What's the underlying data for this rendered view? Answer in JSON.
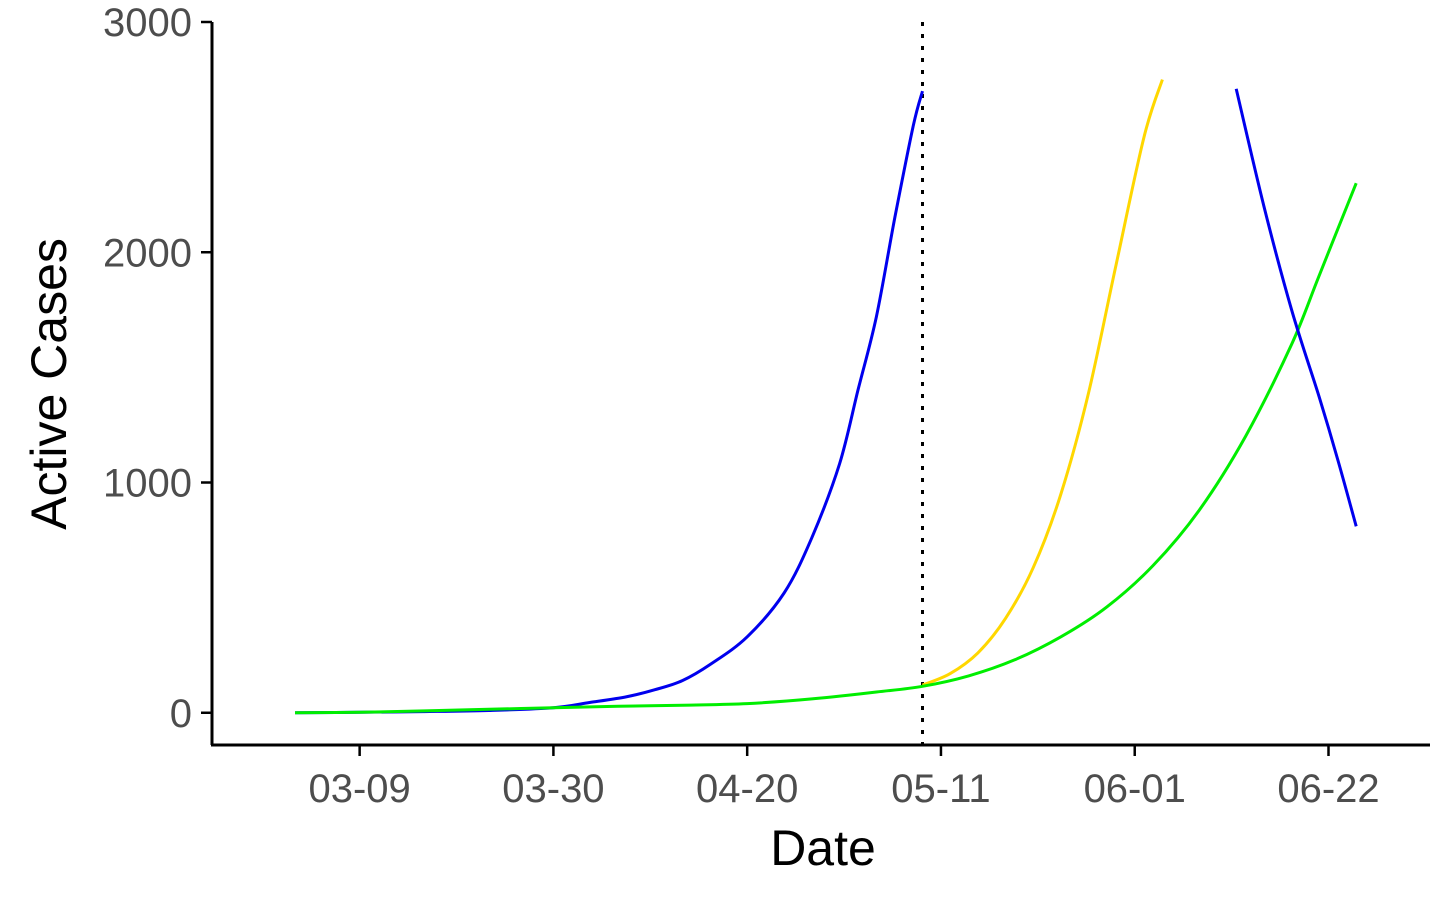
{
  "chart_data": {
    "type": "line",
    "title": "",
    "xlabel": "Date",
    "ylabel": "Active Cases",
    "x_axis": {
      "type": "date",
      "range": [
        "2020-02-22",
        "2020-07-03"
      ],
      "ticks": [
        {
          "date": "2020-03-09",
          "label": "03-09"
        },
        {
          "date": "2020-03-30",
          "label": "03-30"
        },
        {
          "date": "2020-04-20",
          "label": "04-20"
        },
        {
          "date": "2020-05-11",
          "label": "05-11"
        },
        {
          "date": "2020-06-01",
          "label": "06-01"
        },
        {
          "date": "2020-06-22",
          "label": "06-22"
        }
      ]
    },
    "y_axis": {
      "range": [
        -140,
        3000
      ],
      "ticks": [
        {
          "value": 0,
          "label": "0"
        },
        {
          "value": 1000,
          "label": "1000"
        },
        {
          "value": 2000,
          "label": "2000"
        },
        {
          "value": 3000,
          "label": "3000"
        }
      ]
    },
    "grid": false,
    "legend": "none",
    "reference_lines": [
      {
        "orientation": "vertical",
        "x": "2020-05-09",
        "style": "dotted",
        "color": "#000000"
      }
    ],
    "series": [
      {
        "color": "#0000ee",
        "points": [
          [
            "2020-03-02",
            0
          ],
          [
            "2020-03-09",
            2
          ],
          [
            "2020-03-16",
            5
          ],
          [
            "2020-03-23",
            10
          ],
          [
            "2020-03-30",
            22
          ],
          [
            "2020-04-03",
            45
          ],
          [
            "2020-04-07",
            70
          ],
          [
            "2020-04-10",
            100
          ],
          [
            "2020-04-13",
            140
          ],
          [
            "2020-04-16",
            210
          ],
          [
            "2020-04-20",
            330
          ],
          [
            "2020-04-24",
            520
          ],
          [
            "2020-04-27",
            760
          ],
          [
            "2020-04-30",
            1080
          ],
          [
            "2020-05-02",
            1400
          ],
          [
            "2020-05-04",
            1720
          ],
          [
            "2020-05-06",
            2150
          ],
          [
            "2020-05-08",
            2550
          ],
          [
            "2020-05-09",
            2700
          ]
        ]
      },
      {
        "color": "#ffd700",
        "points": [
          [
            "2020-05-09",
            120
          ],
          [
            "2020-05-12",
            170
          ],
          [
            "2020-05-15",
            260
          ],
          [
            "2020-05-18",
            410
          ],
          [
            "2020-05-21",
            630
          ],
          [
            "2020-05-24",
            950
          ],
          [
            "2020-05-27",
            1390
          ],
          [
            "2020-05-30",
            1950
          ],
          [
            "2020-06-02",
            2500
          ],
          [
            "2020-06-04",
            2750
          ]
        ]
      },
      {
        "color": "#00ee00",
        "points": [
          [
            "2020-03-02",
            0
          ],
          [
            "2020-03-09",
            2
          ],
          [
            "2020-03-16",
            8
          ],
          [
            "2020-03-23",
            15
          ],
          [
            "2020-03-30",
            22
          ],
          [
            "2020-04-06",
            28
          ],
          [
            "2020-04-13",
            33
          ],
          [
            "2020-04-20",
            40
          ],
          [
            "2020-04-27",
            60
          ],
          [
            "2020-05-04",
            90
          ],
          [
            "2020-05-09",
            115
          ],
          [
            "2020-05-14",
            160
          ],
          [
            "2020-05-19",
            230
          ],
          [
            "2020-05-24",
            330
          ],
          [
            "2020-05-29",
            460
          ],
          [
            "2020-06-03",
            640
          ],
          [
            "2020-06-08",
            880
          ],
          [
            "2020-06-13",
            1200
          ],
          [
            "2020-06-18",
            1600
          ],
          [
            "2020-06-21",
            1900
          ],
          [
            "2020-06-25",
            2300
          ]
        ]
      },
      {
        "color": "#0000ee",
        "points": [
          [
            "2020-06-12",
            2710
          ],
          [
            "2020-06-15",
            2200
          ],
          [
            "2020-06-18",
            1750
          ],
          [
            "2020-06-21",
            1370
          ],
          [
            "2020-06-23",
            1100
          ],
          [
            "2020-06-25",
            810
          ]
        ]
      }
    ]
  }
}
